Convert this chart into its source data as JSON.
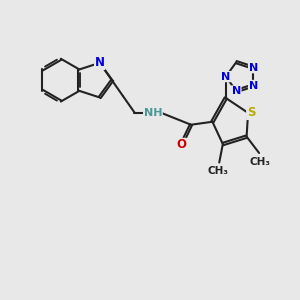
{
  "bg_color": "#e8e8e8",
  "bond_color": "#222222",
  "bond_lw": 1.5,
  "dbl_off": 0.038,
  "atom_colors": {
    "N": "#0000dd",
    "S": "#bbaa00",
    "O": "#cc0000",
    "NH": "#4a9898",
    "C": "#222222"
  },
  "fs": 8.5,
  "fs_me": 7.5,
  "scale": 10
}
